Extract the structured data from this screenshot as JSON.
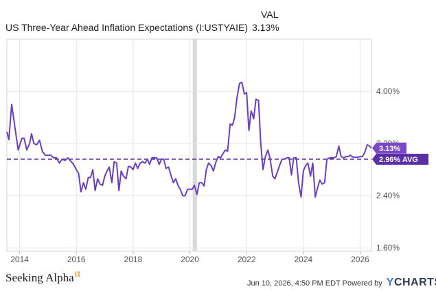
{
  "header": {
    "column_label": "VAL",
    "series_label": "US Three-Year Ahead Inflation Expectations (I:USTYAIE)",
    "series_value": "3.13%"
  },
  "chart_data": {
    "type": "line",
    "title": "",
    "xlabel": "",
    "ylabel": "",
    "x_ticks": [
      "2014",
      "2016",
      "2018",
      "2020",
      "2022",
      "2024",
      "2026"
    ],
    "y_ticks": [
      "1.60%",
      "2.40%",
      "3.20%",
      "4.00%"
    ],
    "xlim": [
      2013.55,
      2026.4
    ],
    "ylim": [
      1.55,
      4.8
    ],
    "grid": true,
    "shaded_band": {
      "from": 2020.1,
      "to": 2020.25
    },
    "average": {
      "value": 2.96,
      "label": "2.96% AVG",
      "color": "#5b2ea8"
    },
    "last_value": {
      "value": 3.13,
      "label": "3.13%",
      "color": "#7a48c8"
    },
    "series": [
      {
        "color": "#6a3ec0",
        "points": [
          [
            2013.55,
            3.38
          ],
          [
            2013.62,
            3.26
          ],
          [
            2013.72,
            3.8
          ],
          [
            2013.85,
            3.4
          ],
          [
            2013.95,
            3.1
          ],
          [
            2014.08,
            3.28
          ],
          [
            2014.16,
            3.28
          ],
          [
            2014.25,
            3.1
          ],
          [
            2014.35,
            3.2
          ],
          [
            2014.42,
            3.35
          ],
          [
            2014.5,
            3.2
          ],
          [
            2014.6,
            3.18
          ],
          [
            2014.7,
            3.25
          ],
          [
            2014.8,
            3.08
          ],
          [
            2014.9,
            3.02
          ],
          [
            2015.0,
            3.02
          ],
          [
            2015.1,
            3.02
          ],
          [
            2015.2,
            2.98
          ],
          [
            2015.3,
            2.98
          ],
          [
            2015.4,
            2.9
          ],
          [
            2015.5,
            2.96
          ],
          [
            2015.6,
            2.94
          ],
          [
            2015.7,
            2.98
          ],
          [
            2015.8,
            2.93
          ],
          [
            2015.9,
            2.88
          ],
          [
            2016.0,
            2.8
          ],
          [
            2016.08,
            2.74
          ],
          [
            2016.16,
            2.46
          ],
          [
            2016.25,
            2.6
          ],
          [
            2016.33,
            2.5
          ],
          [
            2016.42,
            2.68
          ],
          [
            2016.5,
            2.68
          ],
          [
            2016.58,
            2.8
          ],
          [
            2016.66,
            2.48
          ],
          [
            2016.75,
            2.66
          ],
          [
            2016.83,
            2.58
          ],
          [
            2016.92,
            2.56
          ],
          [
            2017.0,
            2.7
          ],
          [
            2017.08,
            2.78
          ],
          [
            2017.16,
            2.84
          ],
          [
            2017.25,
            2.6
          ],
          [
            2017.33,
            2.92
          ],
          [
            2017.42,
            2.9
          ],
          [
            2017.5,
            2.48
          ],
          [
            2017.58,
            2.78
          ],
          [
            2017.66,
            2.7
          ],
          [
            2017.75,
            2.66
          ],
          [
            2017.83,
            2.85
          ],
          [
            2017.92,
            2.84
          ],
          [
            2018.0,
            2.8
          ],
          [
            2018.08,
            2.9
          ],
          [
            2018.16,
            2.82
          ],
          [
            2018.25,
            2.9
          ],
          [
            2018.33,
            2.92
          ],
          [
            2018.42,
            2.9
          ],
          [
            2018.5,
            2.96
          ],
          [
            2018.58,
            2.88
          ],
          [
            2018.66,
            2.98
          ],
          [
            2018.75,
            2.98
          ],
          [
            2018.83,
            2.98
          ],
          [
            2018.92,
            2.88
          ],
          [
            2019.0,
            2.96
          ],
          [
            2019.08,
            2.96
          ],
          [
            2019.16,
            2.82
          ],
          [
            2019.25,
            2.84
          ],
          [
            2019.33,
            2.72
          ],
          [
            2019.42,
            2.6
          ],
          [
            2019.5,
            2.66
          ],
          [
            2019.58,
            2.56
          ],
          [
            2019.66,
            2.5
          ],
          [
            2019.75,
            2.4
          ],
          [
            2019.83,
            2.4
          ],
          [
            2019.92,
            2.5
          ],
          [
            2020.0,
            2.5
          ],
          [
            2020.08,
            2.5
          ],
          [
            2020.16,
            2.56
          ],
          [
            2020.25,
            2.42
          ],
          [
            2020.33,
            2.6
          ],
          [
            2020.42,
            2.6
          ],
          [
            2020.5,
            2.55
          ],
          [
            2020.58,
            2.8
          ],
          [
            2020.66,
            2.9
          ],
          [
            2020.75,
            2.86
          ],
          [
            2020.83,
            2.78
          ],
          [
            2020.92,
            2.92
          ],
          [
            2021.0,
            3.0
          ],
          [
            2021.08,
            2.98
          ],
          [
            2021.16,
            3.04
          ],
          [
            2021.25,
            3.1
          ],
          [
            2021.33,
            3.08
          ],
          [
            2021.42,
            3.5
          ],
          [
            2021.5,
            3.48
          ],
          [
            2021.58,
            3.6
          ],
          [
            2021.66,
            3.9
          ],
          [
            2021.75,
            4.12
          ],
          [
            2021.83,
            4.14
          ],
          [
            2021.92,
            3.96
          ],
          [
            2022.0,
            3.98
          ],
          [
            2022.08,
            3.4
          ],
          [
            2022.16,
            3.7
          ],
          [
            2022.25,
            3.58
          ],
          [
            2022.33,
            3.88
          ],
          [
            2022.42,
            3.86
          ],
          [
            2022.5,
            3.2
          ],
          [
            2022.58,
            2.8
          ],
          [
            2022.66,
            3.0
          ],
          [
            2022.75,
            3.1
          ],
          [
            2022.83,
            2.96
          ],
          [
            2022.92,
            2.7
          ],
          [
            2023.0,
            2.66
          ],
          [
            2023.08,
            2.76
          ],
          [
            2023.16,
            2.86
          ],
          [
            2023.25,
            2.96
          ],
          [
            2023.33,
            2.96
          ],
          [
            2023.42,
            2.98
          ],
          [
            2023.5,
            2.98
          ],
          [
            2023.58,
            2.72
          ],
          [
            2023.66,
            2.98
          ],
          [
            2023.75,
            2.98
          ],
          [
            2023.83,
            2.6
          ],
          [
            2023.92,
            2.38
          ],
          [
            2024.0,
            2.78
          ],
          [
            2024.08,
            2.86
          ],
          [
            2024.16,
            2.9
          ],
          [
            2024.25,
            2.7
          ],
          [
            2024.33,
            2.9
          ],
          [
            2024.42,
            2.38
          ],
          [
            2024.5,
            2.52
          ],
          [
            2024.58,
            2.64
          ],
          [
            2024.66,
            2.58
          ],
          [
            2024.75,
            2.6
          ],
          [
            2024.83,
            2.96
          ],
          [
            2024.92,
            2.98
          ],
          [
            2025.0,
            2.98
          ],
          [
            2025.08,
            2.98
          ],
          [
            2025.16,
            3.0
          ],
          [
            2025.25,
            3.16
          ],
          [
            2025.33,
            3.0
          ],
          [
            2025.42,
            2.98
          ],
          [
            2025.5,
            3.0
          ],
          [
            2025.58,
            3.0
          ],
          [
            2025.66,
            3.02
          ],
          [
            2025.75,
            2.99
          ],
          [
            2025.83,
            2.99
          ],
          [
            2025.92,
            2.99
          ],
          [
            2026.0,
            3.0
          ],
          [
            2026.08,
            3.0
          ],
          [
            2026.16,
            3.06
          ],
          [
            2026.25,
            3.18
          ],
          [
            2026.33,
            3.16
          ],
          [
            2026.4,
            3.13
          ]
        ]
      }
    ]
  },
  "footer": {
    "brand_left": "Seeking Alpha",
    "brand_left_mark": "α",
    "timestamp": "Jun 10, 2026, 4:50 PM EDT",
    "powered_by": "Powered by",
    "brand_right_y": "Y",
    "brand_right_rest": "CHARTS"
  }
}
